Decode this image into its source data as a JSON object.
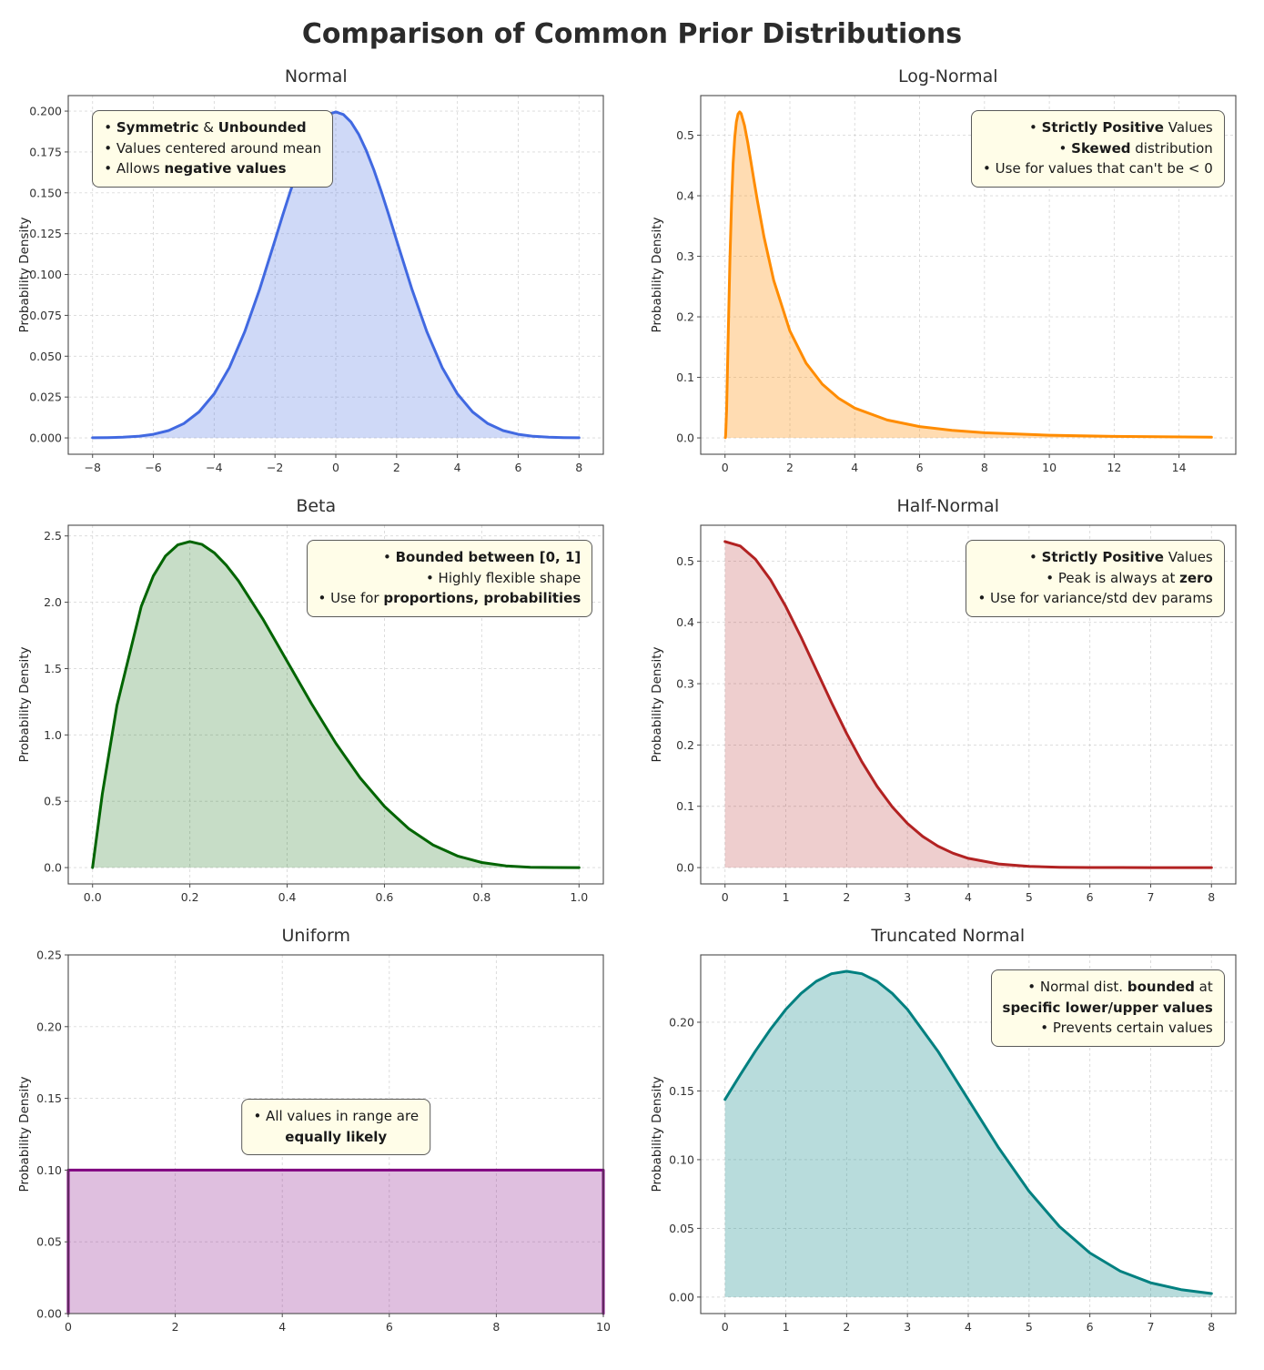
{
  "page": {
    "title": "Comparison of Common Prior Distributions"
  },
  "colors": {
    "note_bg": "#fffde8",
    "note_border": "#5a5a5a",
    "grid": "#c9c9c9",
    "spine": "#4a4a4a"
  },
  "chart_data": [
    {
      "type": "area",
      "title": "Normal",
      "xlabel": "",
      "ylabel": "Probability Density",
      "color": "#4169e1",
      "fill_opacity": 0.25,
      "xlim": [
        -8.8,
        8.8
      ],
      "ylim": [
        -0.01,
        0.2095
      ],
      "xticks": [
        -8,
        -6,
        -4,
        -2,
        0,
        2,
        4,
        6,
        8
      ],
      "xtick_labels": [
        "−8",
        "−6",
        "−4",
        "−2",
        "0",
        "2",
        "4",
        "6",
        "8"
      ],
      "yticks": [
        0,
        0.025,
        0.05,
        0.075,
        0.1,
        0.125,
        0.15,
        0.175,
        0.2
      ],
      "ytick_labels": [
        "0.000",
        "0.025",
        "0.050",
        "0.075",
        "0.100",
        "0.125",
        "0.150",
        "0.175",
        "0.200"
      ],
      "x": [
        -8,
        -7.5,
        -7,
        -6.5,
        -6,
        -5.5,
        -5,
        -4.5,
        -4,
        -3.5,
        -3,
        -2.5,
        -2,
        -1.75,
        -1.5,
        -1.25,
        -1,
        -0.75,
        -0.5,
        -0.25,
        0,
        0.25,
        0.5,
        0.75,
        1,
        1.25,
        1.5,
        1.75,
        2,
        2.5,
        3,
        3.5,
        4,
        4.5,
        5,
        5.5,
        6,
        6.5,
        7,
        7.5,
        8
      ],
      "y": [
        0.0001,
        0.0002,
        0.0004,
        0.001,
        0.0022,
        0.0045,
        0.0088,
        0.0159,
        0.027,
        0.0431,
        0.0648,
        0.0913,
        0.121,
        0.136,
        0.1506,
        0.1641,
        0.176,
        0.1859,
        0.1933,
        0.1979,
        0.1995,
        0.1979,
        0.1933,
        0.1859,
        0.176,
        0.1641,
        0.1506,
        0.136,
        0.121,
        0.0913,
        0.0648,
        0.0431,
        0.027,
        0.0159,
        0.0088,
        0.0045,
        0.0022,
        0.001,
        0.0004,
        0.0002,
        0.0001
      ],
      "note": {
        "pos": "top-left",
        "align": "left",
        "lines": [
          [
            {
              "t": "• ",
              "b": false
            },
            {
              "t": "Symmetric",
              "b": true
            },
            {
              "t": " & ",
              "b": false
            },
            {
              "t": "Unbounded",
              "b": true
            }
          ],
          [
            {
              "t": "• Values centered around mean",
              "b": false
            }
          ],
          [
            {
              "t": "• Allows ",
              "b": false
            },
            {
              "t": "negative values",
              "b": true
            }
          ]
        ]
      }
    },
    {
      "type": "area",
      "title": "Log-Normal",
      "xlabel": "",
      "ylabel": "Probability Density",
      "color": "#ff8c00",
      "fill_opacity": 0.3,
      "xlim": [
        -0.75,
        15.75
      ],
      "ylim": [
        -0.027,
        0.5655
      ],
      "xticks": [
        0,
        2,
        4,
        6,
        8,
        10,
        12,
        14
      ],
      "xtick_labels": [
        "0",
        "2",
        "4",
        "6",
        "8",
        "10",
        "12",
        "14"
      ],
      "yticks": [
        0,
        0.1,
        0.2,
        0.3,
        0.4,
        0.5
      ],
      "ytick_labels": [
        "0.0",
        "0.1",
        "0.2",
        "0.3",
        "0.4",
        "0.5"
      ],
      "x": [
        0.01,
        0.02,
        0.05,
        0.1,
        0.15,
        0.2,
        0.25,
        0.3,
        0.35,
        0.4,
        0.45,
        0.5,
        0.6,
        0.7,
        0.8,
        0.9,
        1,
        1.2,
        1.5,
        2,
        2.5,
        3,
        3.5,
        4,
        5,
        6,
        7,
        8,
        10,
        12,
        15
      ],
      "y": [
        0.0004,
        0.0043,
        0.0476,
        0.174,
        0.295,
        0.388,
        0.4535,
        0.496,
        0.522,
        0.535,
        0.5386,
        0.5355,
        0.5164,
        0.4881,
        0.456,
        0.4231,
        0.391,
        0.3324,
        0.2604,
        0.1766,
        0.1235,
        0.0888,
        0.0655,
        0.0493,
        0.0296,
        0.0187,
        0.0124,
        0.0085,
        0.0044,
        0.0024,
        0.0011
      ],
      "note": {
        "pos": "top-right",
        "align": "right",
        "lines": [
          [
            {
              "t": "• ",
              "b": false
            },
            {
              "t": "Strictly Positive",
              "b": true
            },
            {
              "t": " Values",
              "b": false
            }
          ],
          [
            {
              "t": "• ",
              "b": false
            },
            {
              "t": "Skewed",
              "b": true
            },
            {
              "t": " distribution",
              "b": false
            }
          ],
          [
            {
              "t": "• Use for values that can't be < 0",
              "b": false
            }
          ]
        ]
      }
    },
    {
      "type": "area",
      "title": "Beta",
      "xlabel": "",
      "ylabel": "Probability Density",
      "color": "#006400",
      "fill_opacity": 0.22,
      "xlim": [
        -0.05,
        1.05
      ],
      "ylim": [
        -0.123,
        2.5805
      ],
      "xticks": [
        0,
        0.2,
        0.4,
        0.6,
        0.8,
        1
      ],
      "xtick_labels": [
        "0.0",
        "0.2",
        "0.4",
        "0.6",
        "0.8",
        "1.0"
      ],
      "yticks": [
        0,
        0.5,
        1,
        1.5,
        2,
        2.5
      ],
      "ytick_labels": [
        "0.0",
        "0.5",
        "1.0",
        "1.5",
        "2.0",
        "2.5"
      ],
      "x": [
        0,
        0.02,
        0.05,
        0.1,
        0.125,
        0.15,
        0.175,
        0.2,
        0.225,
        0.25,
        0.275,
        0.3,
        0.35,
        0.4,
        0.45,
        0.5,
        0.55,
        0.6,
        0.65,
        0.7,
        0.75,
        0.8,
        0.85,
        0.9,
        0.95,
        1
      ],
      "y": [
        0,
        0.5534,
        1.2218,
        1.9683,
        2.198,
        2.349,
        2.4325,
        2.4576,
        2.4354,
        2.373,
        2.2791,
        2.1609,
        1.8743,
        1.5552,
        1.2354,
        0.9375,
        0.6766,
        0.4608,
        0.2926,
        0.1701,
        0.0879,
        0.0384,
        0.0129,
        0.0027,
        0.0002,
        0
      ],
      "note": {
        "pos": "top-right",
        "align": "right",
        "lines": [
          [
            {
              "t": "• ",
              "b": false
            },
            {
              "t": "Bounded between [0, 1]",
              "b": true
            }
          ],
          [
            {
              "t": "• Highly flexible shape",
              "b": false
            }
          ],
          [
            {
              "t": "• Use for ",
              "b": false
            },
            {
              "t": "proportions, probabilities",
              "b": true
            }
          ]
        ]
      }
    },
    {
      "type": "area",
      "title": "Half-Normal",
      "xlabel": "",
      "ylabel": "Probability Density",
      "color": "#b22222",
      "fill_opacity": 0.22,
      "xlim": [
        -0.4,
        8.4
      ],
      "ylim": [
        -0.0266,
        0.5585
      ],
      "xticks": [
        0,
        1,
        2,
        3,
        4,
        5,
        6,
        7,
        8
      ],
      "xtick_labels": [
        "0",
        "1",
        "2",
        "3",
        "4",
        "5",
        "6",
        "7",
        "8"
      ],
      "yticks": [
        0,
        0.1,
        0.2,
        0.3,
        0.4,
        0.5
      ],
      "ytick_labels": [
        "0.0",
        "0.1",
        "0.2",
        "0.3",
        "0.4",
        "0.5"
      ],
      "x": [
        0,
        0.25,
        0.5,
        0.75,
        1,
        1.25,
        1.5,
        1.75,
        2,
        2.25,
        2.5,
        2.75,
        3,
        3.25,
        3.5,
        3.75,
        4,
        4.5,
        5,
        5.5,
        6,
        6.5,
        7,
        7.5,
        8
      ],
      "y": [
        0.5319,
        0.5246,
        0.5032,
        0.4694,
        0.4259,
        0.3759,
        0.3226,
        0.2693,
        0.2187,
        0.1727,
        0.1326,
        0.0991,
        0.072,
        0.0509,
        0.035,
        0.0234,
        0.0152,
        0.0059,
        0.0021,
        0.0006,
        0.0002,
        0.0001,
        0,
        0,
        0
      ],
      "note": {
        "pos": "top-right",
        "align": "right",
        "lines": [
          [
            {
              "t": "• ",
              "b": false
            },
            {
              "t": "Strictly Positive",
              "b": true
            },
            {
              "t": " Values",
              "b": false
            }
          ],
          [
            {
              "t": "• Peak is always at ",
              "b": false
            },
            {
              "t": "zero",
              "b": true
            }
          ],
          [
            {
              "t": "• Use for variance/std dev params",
              "b": false
            }
          ]
        ]
      }
    },
    {
      "type": "area",
      "title": "Uniform",
      "xlabel": "",
      "ylabel": "Probability Density",
      "color": "#800080",
      "fill_opacity": 0.25,
      "xlim": [
        0,
        10
      ],
      "ylim": [
        0,
        0.25
      ],
      "xticks": [
        0,
        2,
        4,
        6,
        8,
        10
      ],
      "xtick_labels": [
        "0",
        "2",
        "4",
        "6",
        "8",
        "10"
      ],
      "yticks": [
        0,
        0.05,
        0.1,
        0.15,
        0.2,
        0.25
      ],
      "ytick_labels": [
        "0.00",
        "0.05",
        "0.10",
        "0.15",
        "0.20",
        "0.25"
      ],
      "x": [
        0,
        0,
        10,
        10
      ],
      "y": [
        0,
        0.1,
        0.1,
        0
      ],
      "note": {
        "pos": "center",
        "align": "center",
        "lines": [
          [
            {
              "t": "• All values in range are",
              "b": false
            }
          ],
          [
            {
              "t": "equally likely",
              "b": true
            }
          ]
        ]
      }
    },
    {
      "type": "area",
      "title": "Truncated Normal",
      "xlabel": "",
      "ylabel": "Probability Density",
      "color": "#008080",
      "fill_opacity": 0.28,
      "xlim": [
        -0.4,
        8.4
      ],
      "ylim": [
        -0.012,
        0.249
      ],
      "xticks": [
        0,
        1,
        2,
        3,
        4,
        5,
        6,
        7,
        8
      ],
      "xtick_labels": [
        "0",
        "1",
        "2",
        "3",
        "4",
        "5",
        "6",
        "7",
        "8"
      ],
      "yticks": [
        0,
        0.05,
        0.1,
        0.15,
        0.2
      ],
      "ytick_labels": [
        "0.00",
        "0.05",
        "0.10",
        "0.15",
        "0.20"
      ],
      "x": [
        0,
        0.25,
        0.5,
        0.75,
        1,
        1.25,
        1.5,
        1.75,
        2,
        2.25,
        2.5,
        2.75,
        3,
        3.5,
        4,
        4.5,
        5,
        5.5,
        6,
        6.5,
        7,
        7.5,
        8
      ],
      "y": [
        0.1438,
        0.1617,
        0.179,
        0.195,
        0.2093,
        0.221,
        0.2298,
        0.2353,
        0.2371,
        0.2353,
        0.2298,
        0.221,
        0.2093,
        0.179,
        0.1438,
        0.1086,
        0.077,
        0.0513,
        0.0321,
        0.0189,
        0.0104,
        0.0054,
        0.0026
      ],
      "note": {
        "pos": "top-right",
        "align": "right",
        "lines": [
          [
            {
              "t": "• Normal dist. ",
              "b": false
            },
            {
              "t": "bounded",
              "b": true
            },
            {
              "t": " at",
              "b": false
            }
          ],
          [
            {
              "t": "specific lower/upper values",
              "b": true
            }
          ],
          [
            {
              "t": "• Prevents certain values",
              "b": false
            }
          ]
        ]
      }
    }
  ]
}
